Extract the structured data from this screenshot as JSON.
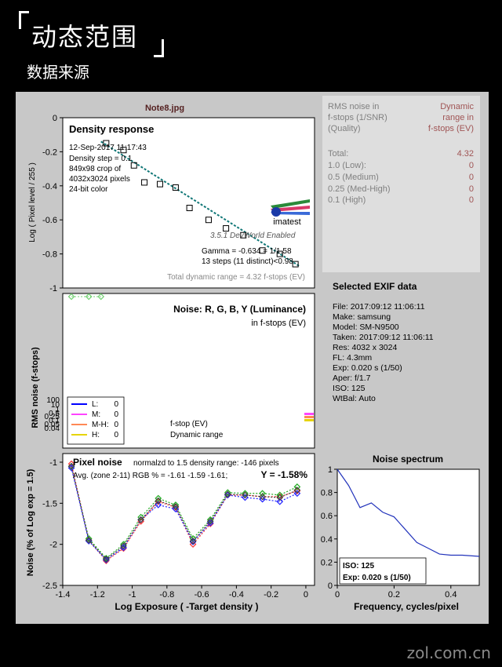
{
  "header": {
    "title": "动态范围",
    "subtitle": "数据来源"
  },
  "watermark": "zol.com.cn",
  "file_title": "Note8.jpg",
  "density": {
    "title": "Density response",
    "info": [
      "12-Sep-2017 11:17:43",
      "Density step = 0.1",
      "849x98 crop of",
      "4032x3024 pixels",
      "24-bit color"
    ],
    "version": "3.5.1  DevWorld Enabled",
    "logo": "imatest",
    "gamma": "Gamma = -0.634 = 1/1.58",
    "steps": "13 steps (11 distinct)<0.98",
    "total_range": "Total dynamic range = 4.32 f-stops (EV)"
  },
  "noise_table": {
    "head_left": [
      "RMS noise in",
      "f-stops (1/SNR)",
      "(Quality)"
    ],
    "head_right": [
      "Dynamic",
      "range in",
      "f-stops (EV)"
    ],
    "rows": [
      {
        "label": "Total:",
        "value": "4.32"
      },
      {
        "label": "1.0  (Low):",
        "value": "0"
      },
      {
        "label": "0.5  (Medium)",
        "value": "0"
      },
      {
        "label": "0.25 (Med-High)",
        "value": "0"
      },
      {
        "label": "0.1  (High)",
        "value": "0"
      }
    ]
  },
  "exif": {
    "title": "Selected EXIF data",
    "rows": [
      "File:  2017:09:12 11:06:11",
      "Make:  samsung",
      "Model: SM-N9500",
      "Taken: 2017:09:12 11:06:11",
      "Res:    4032 x 3024",
      "FL:    4.3mm",
      "Exp:   0.020 s  (1/50)",
      "Aper:  f/1.7",
      "ISO:   125",
      "WtBal: Auto"
    ]
  },
  "noise_ev": {
    "title": "Noise: R, G, B, Y (Luminance)",
    "subtitle": "in f-stops (EV)",
    "legend": [
      {
        "name": "L:",
        "value": "0",
        "color": "#0000ff"
      },
      {
        "name": "M:",
        "value": "0",
        "color": "#ff44ff"
      },
      {
        "name": "M-H:",
        "value": "0",
        "color": "#ff8855"
      },
      {
        "name": "H:",
        "value": "0",
        "color": "#e6d400"
      }
    ],
    "fstop_label": "f-stop (EV)",
    "dr_label": "Dynamic range",
    "ylabel": "RMS noise (f-stops)"
  },
  "pixel_noise": {
    "title": "Pixel noise",
    "norm_note": "normalzd to 1.5 density range: -146 pixels",
    "avg_label": "Avg. (zone 2-11) RGB % = -1.61 -1.59 -1.61;",
    "y_avg": "Y = -1.58%"
  },
  "spectrum": {
    "title": "Noise spectrum",
    "iso": "ISO:   125",
    "exp": "Exp:   0.020 s  (1/50)"
  },
  "chart_data": [
    {
      "type": "scatter",
      "name": "density-response",
      "ylabel": "Log ( Pixel level / 255 )",
      "xlim": [
        -1.4,
        0.05
      ],
      "ylim": [
        -1,
        0
      ],
      "yticks": [
        "0",
        "-0.2",
        "-0.4",
        "-0.6",
        "-0.8",
        "-1"
      ],
      "x": [
        -1.15,
        -1.05,
        -0.99,
        -0.93,
        -0.84,
        -0.75,
        -0.67,
        -0.56,
        -0.46,
        -0.36,
        -0.25,
        -0.15,
        -0.06
      ],
      "y": [
        -0.15,
        -0.19,
        -0.28,
        -0.38,
        -0.39,
        -0.41,
        -0.53,
        -0.6,
        -0.65,
        -0.69,
        -0.78,
        -0.8,
        -0.86
      ],
      "fit": [
        [
          -1.18,
          -0.14
        ],
        [
          -0.04,
          -0.87
        ]
      ]
    },
    {
      "type": "line",
      "name": "noise-ev",
      "yticks": [
        "100",
        "10",
        "1",
        "0.5",
        "0.25",
        "0.1",
        "0.05",
        "0.04"
      ],
      "xlim": [
        -1.4,
        0.05
      ],
      "series": [
        {
          "color": "#70d070",
          "x": [
            -1.35,
            -1.25,
            -1.18
          ],
          "y": [
            -1.0,
            -1.0,
            -1.0
          ]
        }
      ]
    },
    {
      "type": "line",
      "name": "pixel-noise",
      "xlabel": "Log Exposure ( -Target density )",
      "ylabel": "Noise (% of Log exp = 1.5)",
      "xlim": [
        -1.4,
        0.05
      ],
      "ylim": [
        -2.5,
        -1
      ],
      "xticks": [
        "-1.4",
        "-1.2",
        "-1",
        "-0.8",
        "-0.6",
        "-0.4",
        "-0.2",
        "0"
      ],
      "yticks": [
        "-1",
        "-1.5",
        "-2",
        "-2.5"
      ],
      "x": [
        -1.35,
        -1.25,
        -1.15,
        -1.05,
        -0.95,
        -0.85,
        -0.75,
        -0.65,
        -0.55,
        -0.45,
        -0.35,
        -0.25,
        -0.15,
        -0.05
      ],
      "series": [
        {
          "color": "#ff3333",
          "y": [
            -1.02,
            -1.95,
            -2.2,
            -2.05,
            -1.72,
            -1.48,
            -1.55,
            -2.0,
            -1.75,
            -1.4,
            -1.4,
            -1.42,
            -1.42,
            -1.35
          ]
        },
        {
          "color": "#22aa22",
          "y": [
            -1.05,
            -1.93,
            -2.17,
            -2.0,
            -1.67,
            -1.44,
            -1.52,
            -1.93,
            -1.7,
            -1.37,
            -1.38,
            -1.38,
            -1.4,
            -1.3
          ]
        },
        {
          "color": "#2222ff",
          "y": [
            -1.07,
            -1.96,
            -2.19,
            -2.04,
            -1.7,
            -1.52,
            -1.57,
            -1.97,
            -1.74,
            -1.4,
            -1.43,
            -1.45,
            -1.48,
            -1.38
          ]
        },
        {
          "color": "#444444",
          "y": [
            -1.05,
            -1.95,
            -2.18,
            -2.02,
            -1.7,
            -1.47,
            -1.54,
            -1.96,
            -1.72,
            -1.39,
            -1.4,
            -1.42,
            -1.43,
            -1.34
          ]
        }
      ]
    },
    {
      "type": "line",
      "name": "noise-spectrum",
      "xlabel": "Frequency, cycles/pixel",
      "xlim": [
        0,
        0.5
      ],
      "ylim": [
        0,
        1
      ],
      "xticks": [
        "0",
        "0.2",
        "0.4"
      ],
      "yticks": [
        "1",
        "0.8",
        "0.6",
        "0.4",
        "0.2",
        "0"
      ],
      "x": [
        0,
        0.04,
        0.08,
        0.12,
        0.16,
        0.2,
        0.24,
        0.28,
        0.32,
        0.36,
        0.4,
        0.44,
        0.5
      ],
      "y": [
        1.0,
        0.86,
        0.67,
        0.71,
        0.63,
        0.59,
        0.48,
        0.37,
        0.32,
        0.27,
        0.26,
        0.26,
        0.25
      ]
    }
  ]
}
